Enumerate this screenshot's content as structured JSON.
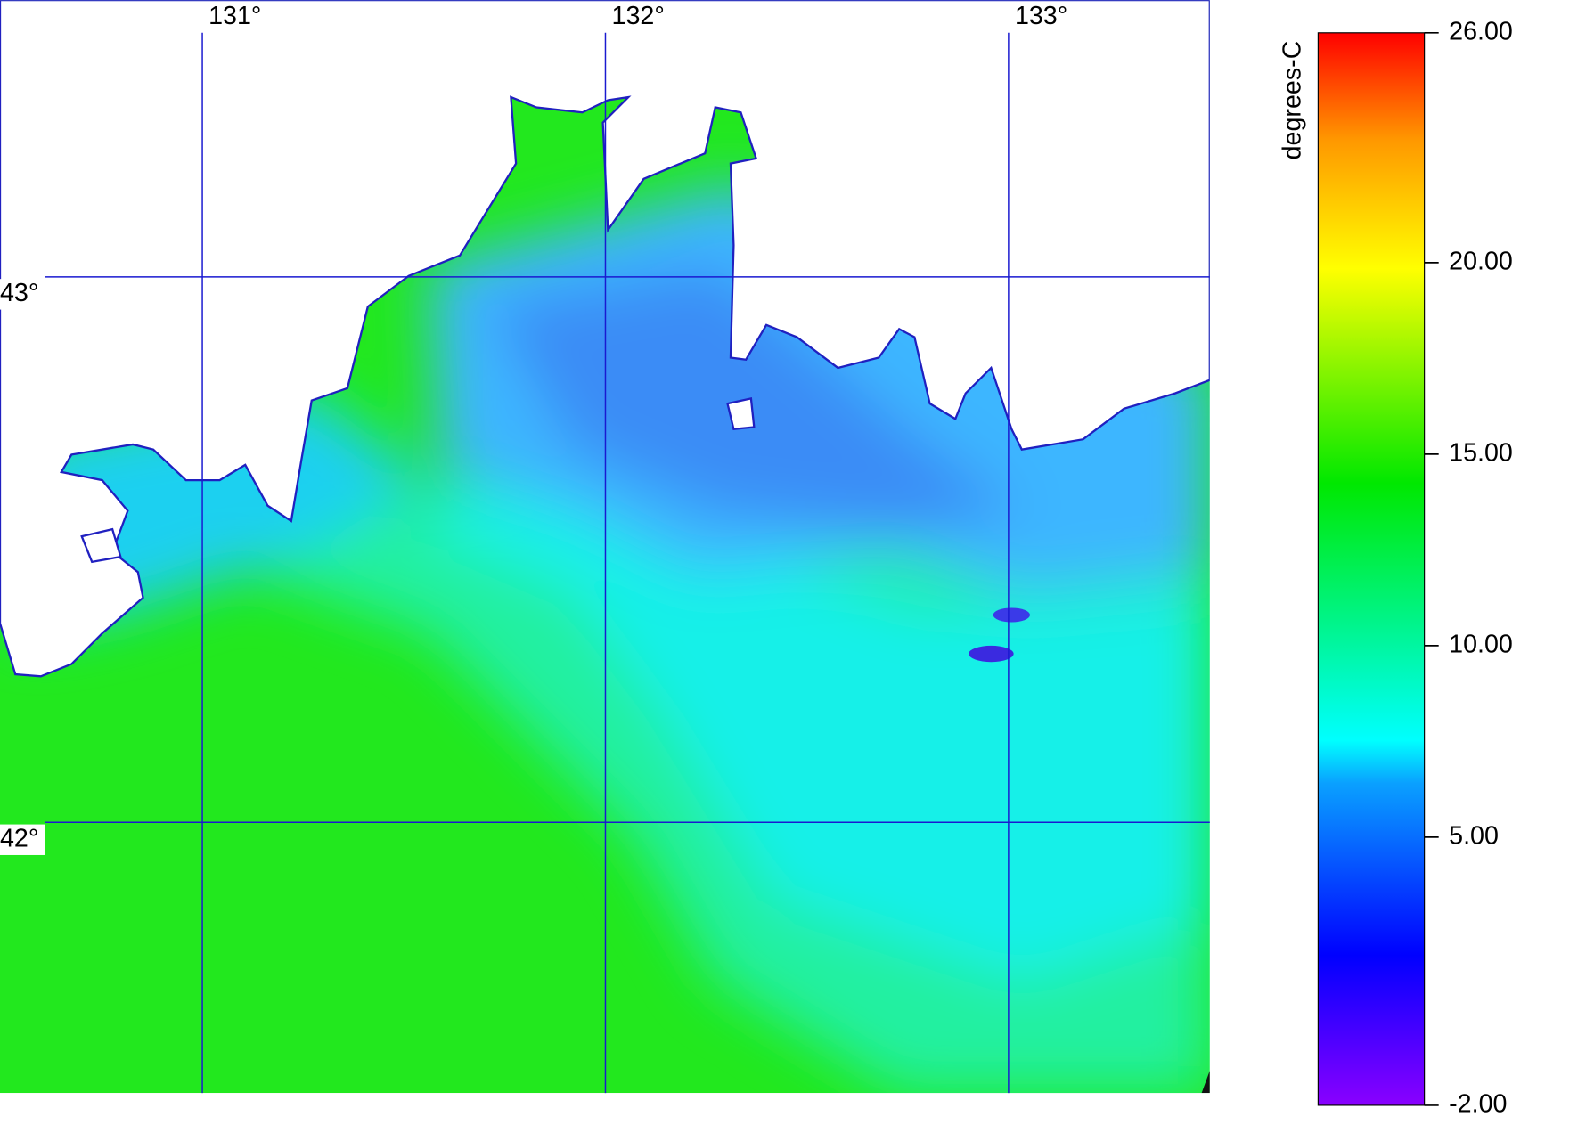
{
  "map": {
    "lon_ticks": [
      {
        "value": 131,
        "label": "131°"
      },
      {
        "value": 132,
        "label": "132°"
      },
      {
        "value": 133,
        "label": "133°"
      }
    ],
    "lat_ticks": [
      {
        "value": 43,
        "label": "43°"
      },
      {
        "value": 42,
        "label": "42°"
      }
    ],
    "colorbar": {
      "title": "degrees-C",
      "range": [
        -2,
        26
      ],
      "ticks": [
        {
          "value": 26,
          "label": "26.00"
        },
        {
          "value": 20,
          "label": "20.00"
        },
        {
          "value": 15,
          "label": "15.00"
        },
        {
          "value": 10,
          "label": "10.00"
        },
        {
          "value": 5,
          "label": "5.00"
        },
        {
          "value": -2,
          "label": "-2.00"
        }
      ]
    }
  }
}
